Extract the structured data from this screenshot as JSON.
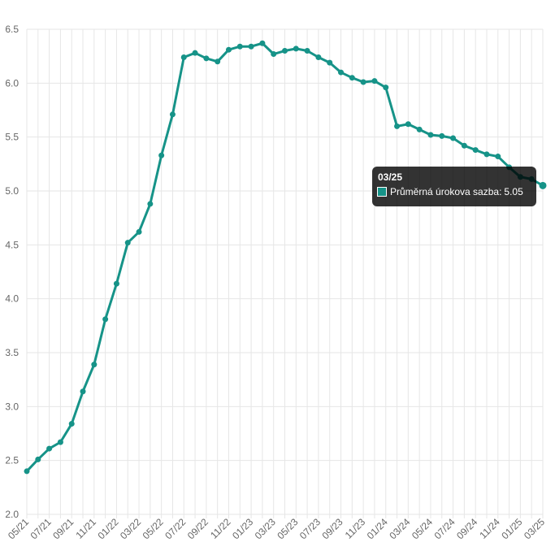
{
  "chart_data": {
    "type": "line",
    "title": "",
    "xlabel": "",
    "ylabel": "",
    "ylim": [
      2.0,
      6.5
    ],
    "y_ticks": [
      "2.0",
      "2.5",
      "3.0",
      "3.5",
      "4.0",
      "4.5",
      "5.0",
      "5.5",
      "6.0",
      "6.5"
    ],
    "x_tick_labels": [
      "05/21",
      "07/21",
      "09/21",
      "11/21",
      "01/22",
      "03/22",
      "05/22",
      "07/22",
      "09/22",
      "11/22",
      "01/23",
      "03/23",
      "05/23",
      "07/23",
      "09/23",
      "11/23",
      "01/24",
      "03/24",
      "05/24",
      "07/24",
      "09/24",
      "11/24",
      "01/25",
      "03/25"
    ],
    "grid": true,
    "legend": "none",
    "x": [
      "05/21",
      "06/21",
      "07/21",
      "08/21",
      "09/21",
      "10/21",
      "11/21",
      "12/21",
      "01/22",
      "02/22",
      "03/22",
      "04/22",
      "05/22",
      "06/22",
      "07/22",
      "08/22",
      "09/22",
      "10/22",
      "11/22",
      "12/22",
      "01/23",
      "02/23",
      "03/23",
      "04/23",
      "05/23",
      "06/23",
      "07/23",
      "08/23",
      "09/23",
      "10/23",
      "11/23",
      "12/23",
      "01/24",
      "02/24",
      "03/24",
      "04/24",
      "05/24",
      "06/24",
      "07/24",
      "08/24",
      "09/24",
      "10/24",
      "11/24",
      "12/24",
      "01/25",
      "02/25",
      "03/25"
    ],
    "series": [
      {
        "name": "Průměrná úrokova sazba",
        "color": "#169388",
        "values": [
          2.4,
          2.51,
          2.61,
          2.67,
          2.84,
          3.14,
          3.39,
          3.81,
          4.14,
          4.52,
          4.62,
          4.88,
          5.33,
          5.71,
          6.24,
          6.28,
          6.23,
          6.2,
          6.31,
          6.34,
          6.34,
          6.37,
          6.27,
          6.3,
          6.32,
          6.3,
          6.24,
          6.19,
          6.1,
          6.05,
          6.01,
          6.02,
          5.96,
          5.6,
          5.62,
          5.57,
          5.52,
          5.51,
          5.49,
          5.42,
          5.38,
          5.34,
          5.32,
          5.22,
          5.13,
          5.11,
          5.05
        ]
      }
    ]
  },
  "tooltip": {
    "title": "03/25",
    "series_label": "Průměrná úrokova sazba",
    "value": "5.05",
    "color": "#169388"
  }
}
